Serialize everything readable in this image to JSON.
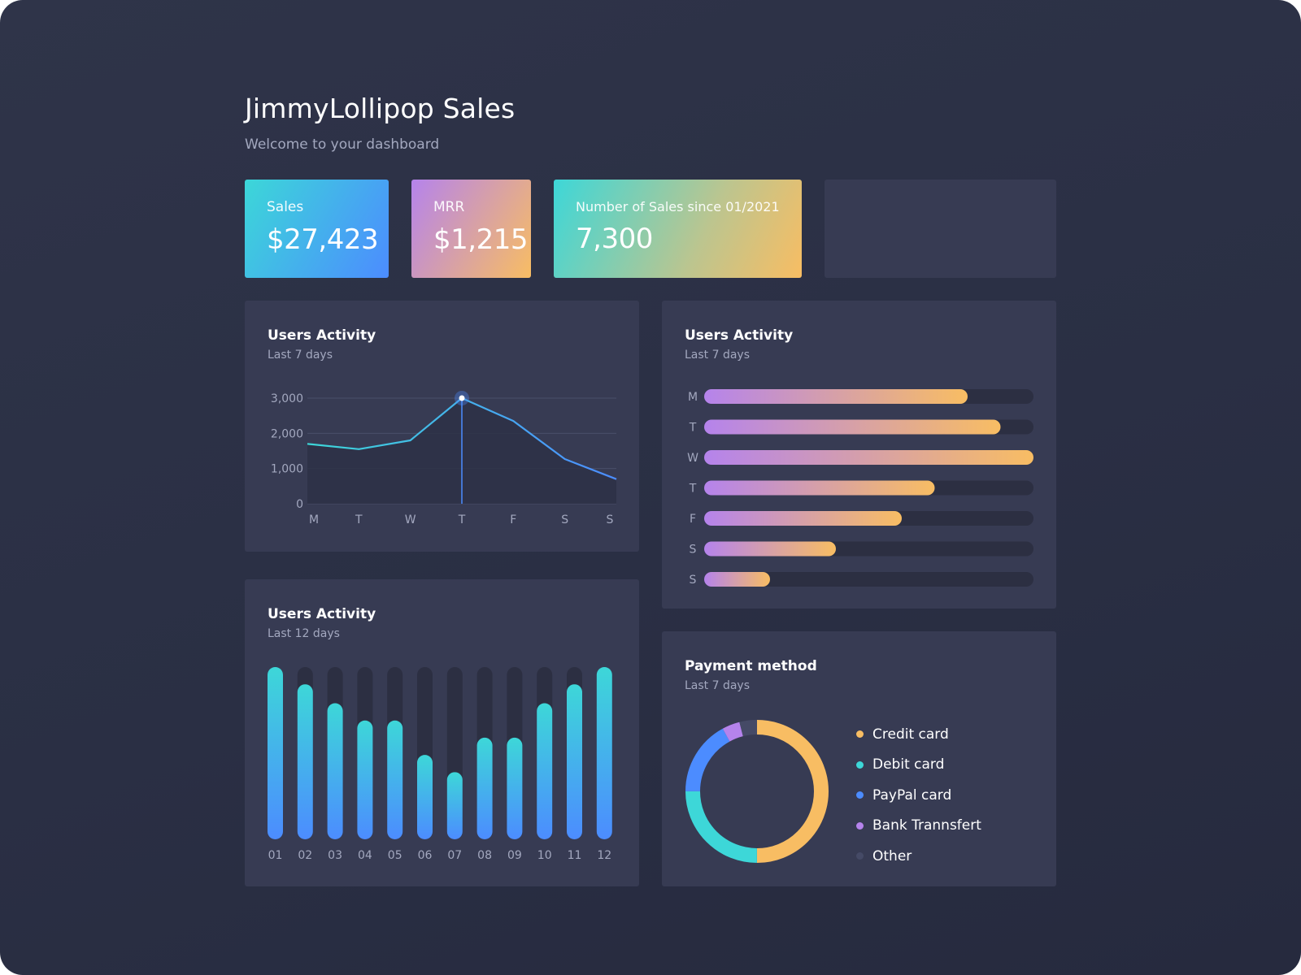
{
  "header": {
    "title": "JimmyLollipop Sales",
    "subtitle": "Welcome to your dashboard"
  },
  "stats": [
    {
      "label": "Sales",
      "value": "$27,423"
    },
    {
      "label": "MRR",
      "value": "$1,215"
    },
    {
      "label": "Number of Sales since 01/2021",
      "value": "7,300"
    }
  ],
  "colors": {
    "background": "#2b2f44",
    "card": "#373b53",
    "track": "#2c2f42",
    "cyan": "#3dd7d8",
    "blue": "#4c8cff",
    "purple": "#b583ec",
    "orange": "#f8bd63",
    "muted": "#a3a8bf"
  },
  "line_card": {
    "title": "Users Activity",
    "subtitle": "Last 7 days"
  },
  "hbar_card": {
    "title": "Users Activity",
    "subtitle": "Last 7 days"
  },
  "vbar_card": {
    "title": "Users Activity",
    "subtitle": "Last 12 days"
  },
  "pie_card": {
    "title": "Payment method",
    "subtitle": "Last 7 days"
  },
  "chart_data": [
    {
      "type": "line",
      "title": "Users Activity",
      "subtitle": "Last 7 days",
      "categories": [
        "M",
        "T",
        "W",
        "T",
        "F",
        "S",
        "S"
      ],
      "values": [
        1700,
        1550,
        1800,
        3000,
        2350,
        1270,
        700
      ],
      "yticks": [
        0,
        1000,
        2000,
        3000
      ],
      "ytick_labels": [
        "0",
        "1,000",
        "2,000",
        "3,000"
      ],
      "ylim": [
        0,
        3000
      ],
      "highlight_index": 3,
      "grid": true
    },
    {
      "type": "bar",
      "orientation": "horizontal",
      "title": "Users Activity",
      "subtitle": "Last 7 days",
      "categories": [
        "M",
        "T",
        "W",
        "T",
        "F",
        "S",
        "S"
      ],
      "values": [
        80,
        90,
        100,
        70,
        60,
        40,
        20
      ],
      "xlim": [
        0,
        100
      ]
    },
    {
      "type": "bar",
      "title": "Users Activity",
      "subtitle": "Last 12 days",
      "categories": [
        "01",
        "02",
        "03",
        "04",
        "05",
        "06",
        "07",
        "08",
        "09",
        "10",
        "11",
        "12"
      ],
      "values": [
        100,
        90,
        79,
        69,
        69,
        49,
        39,
        59,
        59,
        79,
        90,
        100
      ],
      "ylim": [
        0,
        100
      ]
    },
    {
      "type": "pie",
      "title": "Payment method",
      "subtitle": "Last 7 days",
      "donut": true,
      "labels": [
        "Credit card",
        "Debit card",
        "PayPal card",
        "Bank Trannsfert",
        "Other"
      ],
      "values": [
        50,
        25,
        17,
        4,
        4
      ],
      "colors": [
        "#f8bd63",
        "#3dd7d8",
        "#4c8cff",
        "#b583ec",
        "#454a66"
      ]
    }
  ]
}
